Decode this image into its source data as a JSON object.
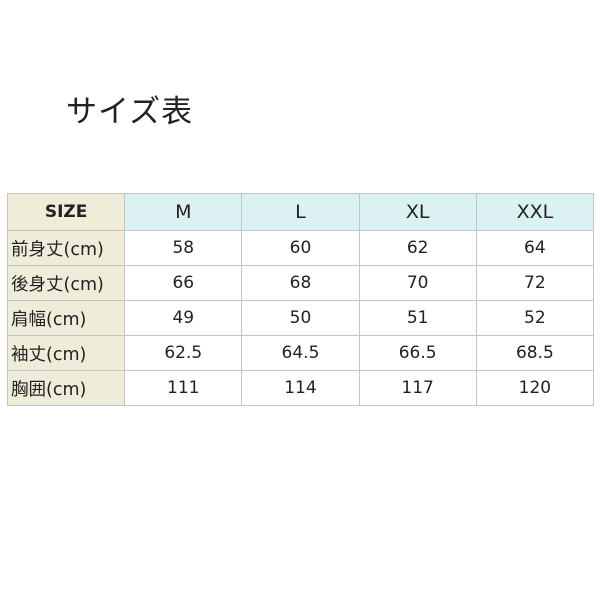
{
  "title": "サイズ表",
  "table": {
    "corner": "SIZE",
    "sizes": [
      "M",
      "L",
      "XL",
      "XXL"
    ],
    "rows": [
      {
        "label": "前身丈(cm)",
        "values": [
          "58",
          "60",
          "62",
          "64"
        ]
      },
      {
        "label": "後身丈(cm)",
        "values": [
          "66",
          "68",
          "70",
          "72"
        ]
      },
      {
        "label": "肩幅(cm)",
        "values": [
          "49",
          "50",
          "51",
          "52"
        ]
      },
      {
        "label": "袖丈(cm)",
        "values": [
          "62.5",
          "64.5",
          "66.5",
          "68.5"
        ]
      },
      {
        "label": "胸囲(cm)",
        "values": [
          "111",
          "114",
          "117",
          "120"
        ]
      }
    ]
  },
  "colors": {
    "header_bg": "#dcf1f1",
    "label_bg": "#efecda",
    "border": "#c4c4c4"
  }
}
